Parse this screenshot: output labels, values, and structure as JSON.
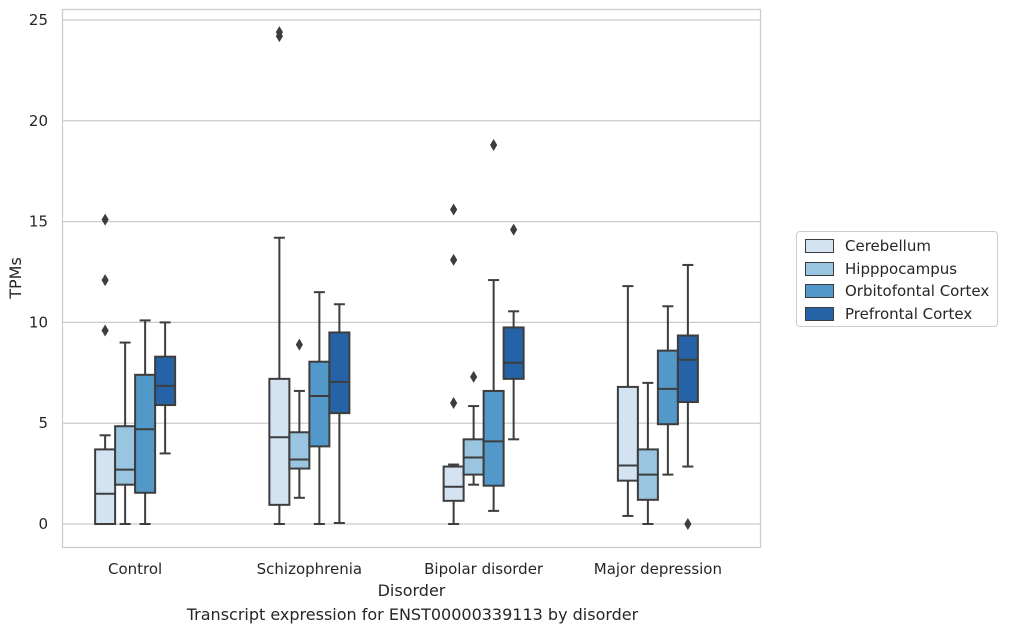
{
  "caption": "Transcript expression for ENST00000339113 by disorder",
  "chart_data": {
    "type": "box",
    "title": "",
    "xlabel": "Disorder",
    "ylabel": "TPMs",
    "ylim": [
      -1.2,
      25.6
    ],
    "yticks": [
      0,
      5,
      10,
      15,
      20,
      25
    ],
    "grid": "horizontal",
    "legend_position": "right",
    "categories": [
      "Control",
      "Schizophrenia",
      "Bipolar disorder",
      "Major depression"
    ],
    "series": [
      {
        "name": "Cerebellum",
        "color": "#d4e3f2",
        "boxes": [
          {
            "whislo": 0.0,
            "q1": 0.0,
            "med": 1.5,
            "q3": 3.7,
            "whishi": 4.4,
            "fliers": [
              9.6,
              12.1,
              15.1
            ]
          },
          {
            "whislo": 0.0,
            "q1": 0.95,
            "med": 4.3,
            "q3": 7.2,
            "whishi": 14.2,
            "fliers": [
              24.2,
              24.4
            ]
          },
          {
            "whislo": 0.0,
            "q1": 1.15,
            "med": 1.85,
            "q3": 2.85,
            "whishi": 2.95,
            "fliers": [
              6.0,
              13.1,
              15.6
            ]
          },
          {
            "whislo": 0.4,
            "q1": 2.15,
            "med": 2.9,
            "q3": 6.8,
            "whishi": 11.8,
            "fliers": []
          }
        ]
      },
      {
        "name": "Hipppocampus",
        "color": "#9ac5e0",
        "boxes": [
          {
            "whislo": 0.0,
            "q1": 1.95,
            "med": 2.7,
            "q3": 4.85,
            "whishi": 9.0,
            "fliers": []
          },
          {
            "whislo": 1.3,
            "q1": 2.75,
            "med": 3.2,
            "q3": 4.55,
            "whishi": 6.6,
            "fliers": [
              8.9
            ]
          },
          {
            "whislo": 1.95,
            "q1": 2.45,
            "med": 3.3,
            "q3": 4.2,
            "whishi": 5.85,
            "fliers": [
              7.3
            ]
          },
          {
            "whislo": 0.0,
            "q1": 1.2,
            "med": 2.45,
            "q3": 3.7,
            "whishi": 7.0,
            "fliers": []
          }
        ]
      },
      {
        "name": "Orbitofontal Cortex",
        "color": "#5299c9",
        "boxes": [
          {
            "whislo": 0.0,
            "q1": 1.55,
            "med": 4.7,
            "q3": 7.4,
            "whishi": 10.1,
            "fliers": []
          },
          {
            "whislo": 0.0,
            "q1": 3.85,
            "med": 6.35,
            "q3": 8.05,
            "whishi": 11.5,
            "fliers": []
          },
          {
            "whislo": 0.65,
            "q1": 1.9,
            "med": 4.1,
            "q3": 6.6,
            "whishi": 12.1,
            "fliers": [
              18.8
            ]
          },
          {
            "whislo": 2.45,
            "q1": 4.95,
            "med": 6.7,
            "q3": 8.6,
            "whishi": 10.8,
            "fliers": []
          }
        ]
      },
      {
        "name": "Prefrontal Cortex",
        "color": "#2663a6",
        "boxes": [
          {
            "whislo": 3.5,
            "q1": 5.9,
            "med": 6.85,
            "q3": 8.3,
            "whishi": 10.0,
            "fliers": []
          },
          {
            "whislo": 0.05,
            "q1": 5.5,
            "med": 7.05,
            "q3": 9.5,
            "whishi": 10.9,
            "fliers": []
          },
          {
            "whislo": 4.2,
            "q1": 7.2,
            "med": 8.0,
            "q3": 9.75,
            "whishi": 10.55,
            "fliers": [
              14.6
            ]
          },
          {
            "whislo": 2.85,
            "q1": 6.05,
            "med": 8.15,
            "q3": 9.35,
            "whishi": 12.85,
            "fliers": [
              0.0
            ]
          }
        ]
      }
    ]
  }
}
